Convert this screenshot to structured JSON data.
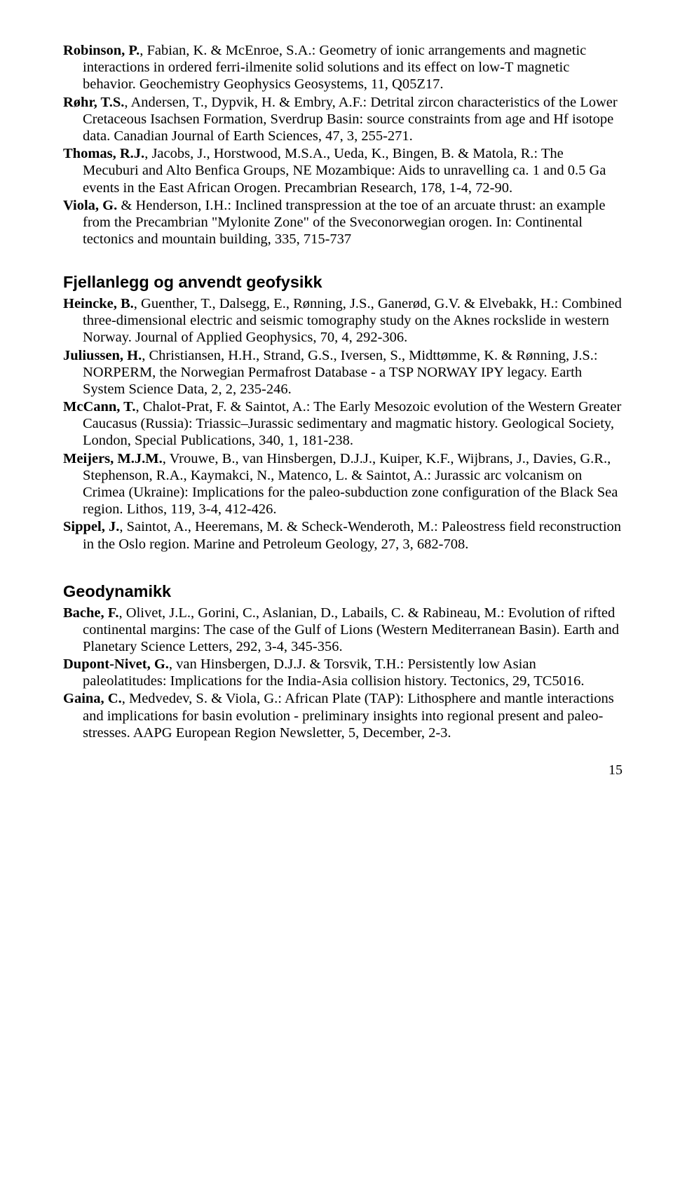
{
  "refs_top": [
    {
      "lead": "Robinson, P.",
      "rest": ", Fabian, K. & McEnroe, S.A.: Geometry of ionic arrangements and magnetic interactions in ordered ferri-ilmenite solid solutions and its effect on low-T magnetic behavior. Geochemistry Geophysics Geosystems, 11, Q05Z17."
    },
    {
      "lead": "Røhr, T.S.",
      "rest": ", Andersen, T., Dypvik, H. & Embry, A.F.: Detrital zircon characteristics of the Lower Cretaceous Isachsen Formation, Sverdrup Basin: source constraints from age and Hf isotope data. Canadian Journal of Earth Sciences, 47, 3, 255-271."
    },
    {
      "lead": "Thomas, R.J.",
      "rest": ", Jacobs, J., Horstwood, M.S.A., Ueda, K., Bingen, B. & Matola, R.: The Mecuburi and Alto Benfica Groups, NE Mozambique: Aids to unravelling ca. 1 and 0.5 Ga events in the East African Orogen. Precambrian Research, 178, 1-4, 72-90."
    },
    {
      "lead": "Viola, G.",
      "rest": " & Henderson, I.H.: Inclined transpression at the toe of an arcuate thrust: an example from the Precambrian \"Mylonite Zone\" of the Sveconorwegian orogen. In: Continental tectonics and mountain building, 335, 715-737"
    }
  ],
  "section1_title": "Fjellanlegg og anvendt geofysikk",
  "refs_s1": [
    {
      "lead": "Heincke, B.",
      "rest": ", Guenther, T., Dalsegg, E., Rønning, J.S., Ganerød, G.V. & Elvebakk, H.: Combined three-dimensional electric and seismic tomography study on the Aknes rockslide in western Norway. Journal of Applied Geophysics, 70, 4, 292-306."
    },
    {
      "lead": "Juliussen, H.",
      "rest": ", Christiansen, H.H., Strand, G.S., Iversen, S., Midttømme, K. & Rønning, J.S.: NORPERM, the Norwegian Permafrost Database - a TSP NORWAY IPY legacy. Earth System Science Data, 2, 2, 235-246."
    },
    {
      "lead": "McCann, T.",
      "rest": ", Chalot-Prat, F. & Saintot, A.: The Early Mesozoic evolution of the Western Greater Caucasus (Russia): Triassic–Jurassic sedimentary and magmatic history. Geological Society, London, Special Publications, 340, 1, 181-238."
    },
    {
      "lead": "Meijers, M.J.M.",
      "rest": ", Vrouwe, B., van Hinsbergen, D.J.J., Kuiper, K.F., Wijbrans, J., Davies, G.R., Stephenson, R.A., Kaymakci, N., Matenco, L. & Saintot, A.: Jurassic arc volcanism on Crimea (Ukraine): Implications for the paleo-subduction zone configuration of the Black Sea region. Lithos, 119, 3-4, 412-426."
    },
    {
      "lead": "Sippel, J.",
      "rest": ", Saintot, A., Heeremans, M. & Scheck-Wenderoth, M.: Paleostress field reconstruction in the Oslo region. Marine and Petroleum Geology, 27, 3, 682-708."
    }
  ],
  "section2_title": "Geodynamikk",
  "refs_s2": [
    {
      "lead": "Bache, F.",
      "rest": ", Olivet, J.L., Gorini, C., Aslanian, D., Labails, C. & Rabineau, M.: Evolution of rifted continental margins: The case of the Gulf of Lions (Western Mediterranean Basin). Earth and Planetary Science Letters, 292, 3-4, 345-356."
    },
    {
      "lead": "Dupont-Nivet, G.",
      "rest": ", van Hinsbergen, D.J.J. & Torsvik, T.H.: Persistently low Asian paleolatitudes: Implications for the India-Asia collision history. Tectonics, 29, TC5016."
    },
    {
      "lead": "Gaina, C.",
      "rest": ", Medvedev, S. & Viola, G.: African Plate (TAP): Lithosphere and mantle interactions and implications for basin evolution - preliminary insights into regional present and paleo-stresses. AAPG European Region Newsletter, 5, December, 2-3."
    }
  ],
  "page_number": "15"
}
